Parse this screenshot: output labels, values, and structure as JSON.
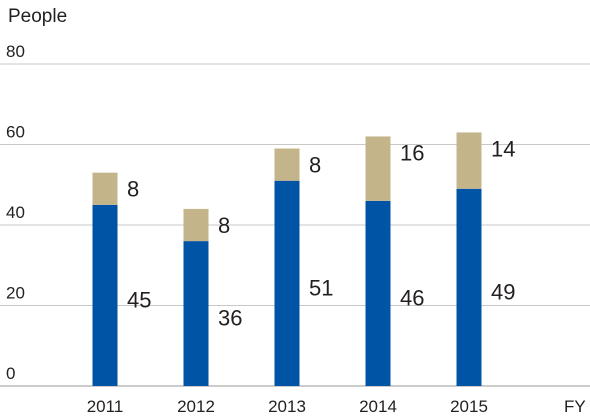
{
  "chart_data": {
    "type": "bar",
    "stacked": true,
    "title": "",
    "ylabel": "People",
    "xlabel": "FY",
    "ylim": [
      0,
      80
    ],
    "yticks": [
      0,
      20,
      40,
      60,
      80
    ],
    "grid": true,
    "categories": [
      "2011",
      "2012",
      "2013",
      "2014",
      "2015"
    ],
    "series": [
      {
        "values": [
          45,
          36,
          51,
          46,
          49
        ],
        "color": "#0054a6"
      },
      {
        "values": [
          8,
          8,
          8,
          16,
          14
        ],
        "color": "#c4b489"
      }
    ]
  }
}
